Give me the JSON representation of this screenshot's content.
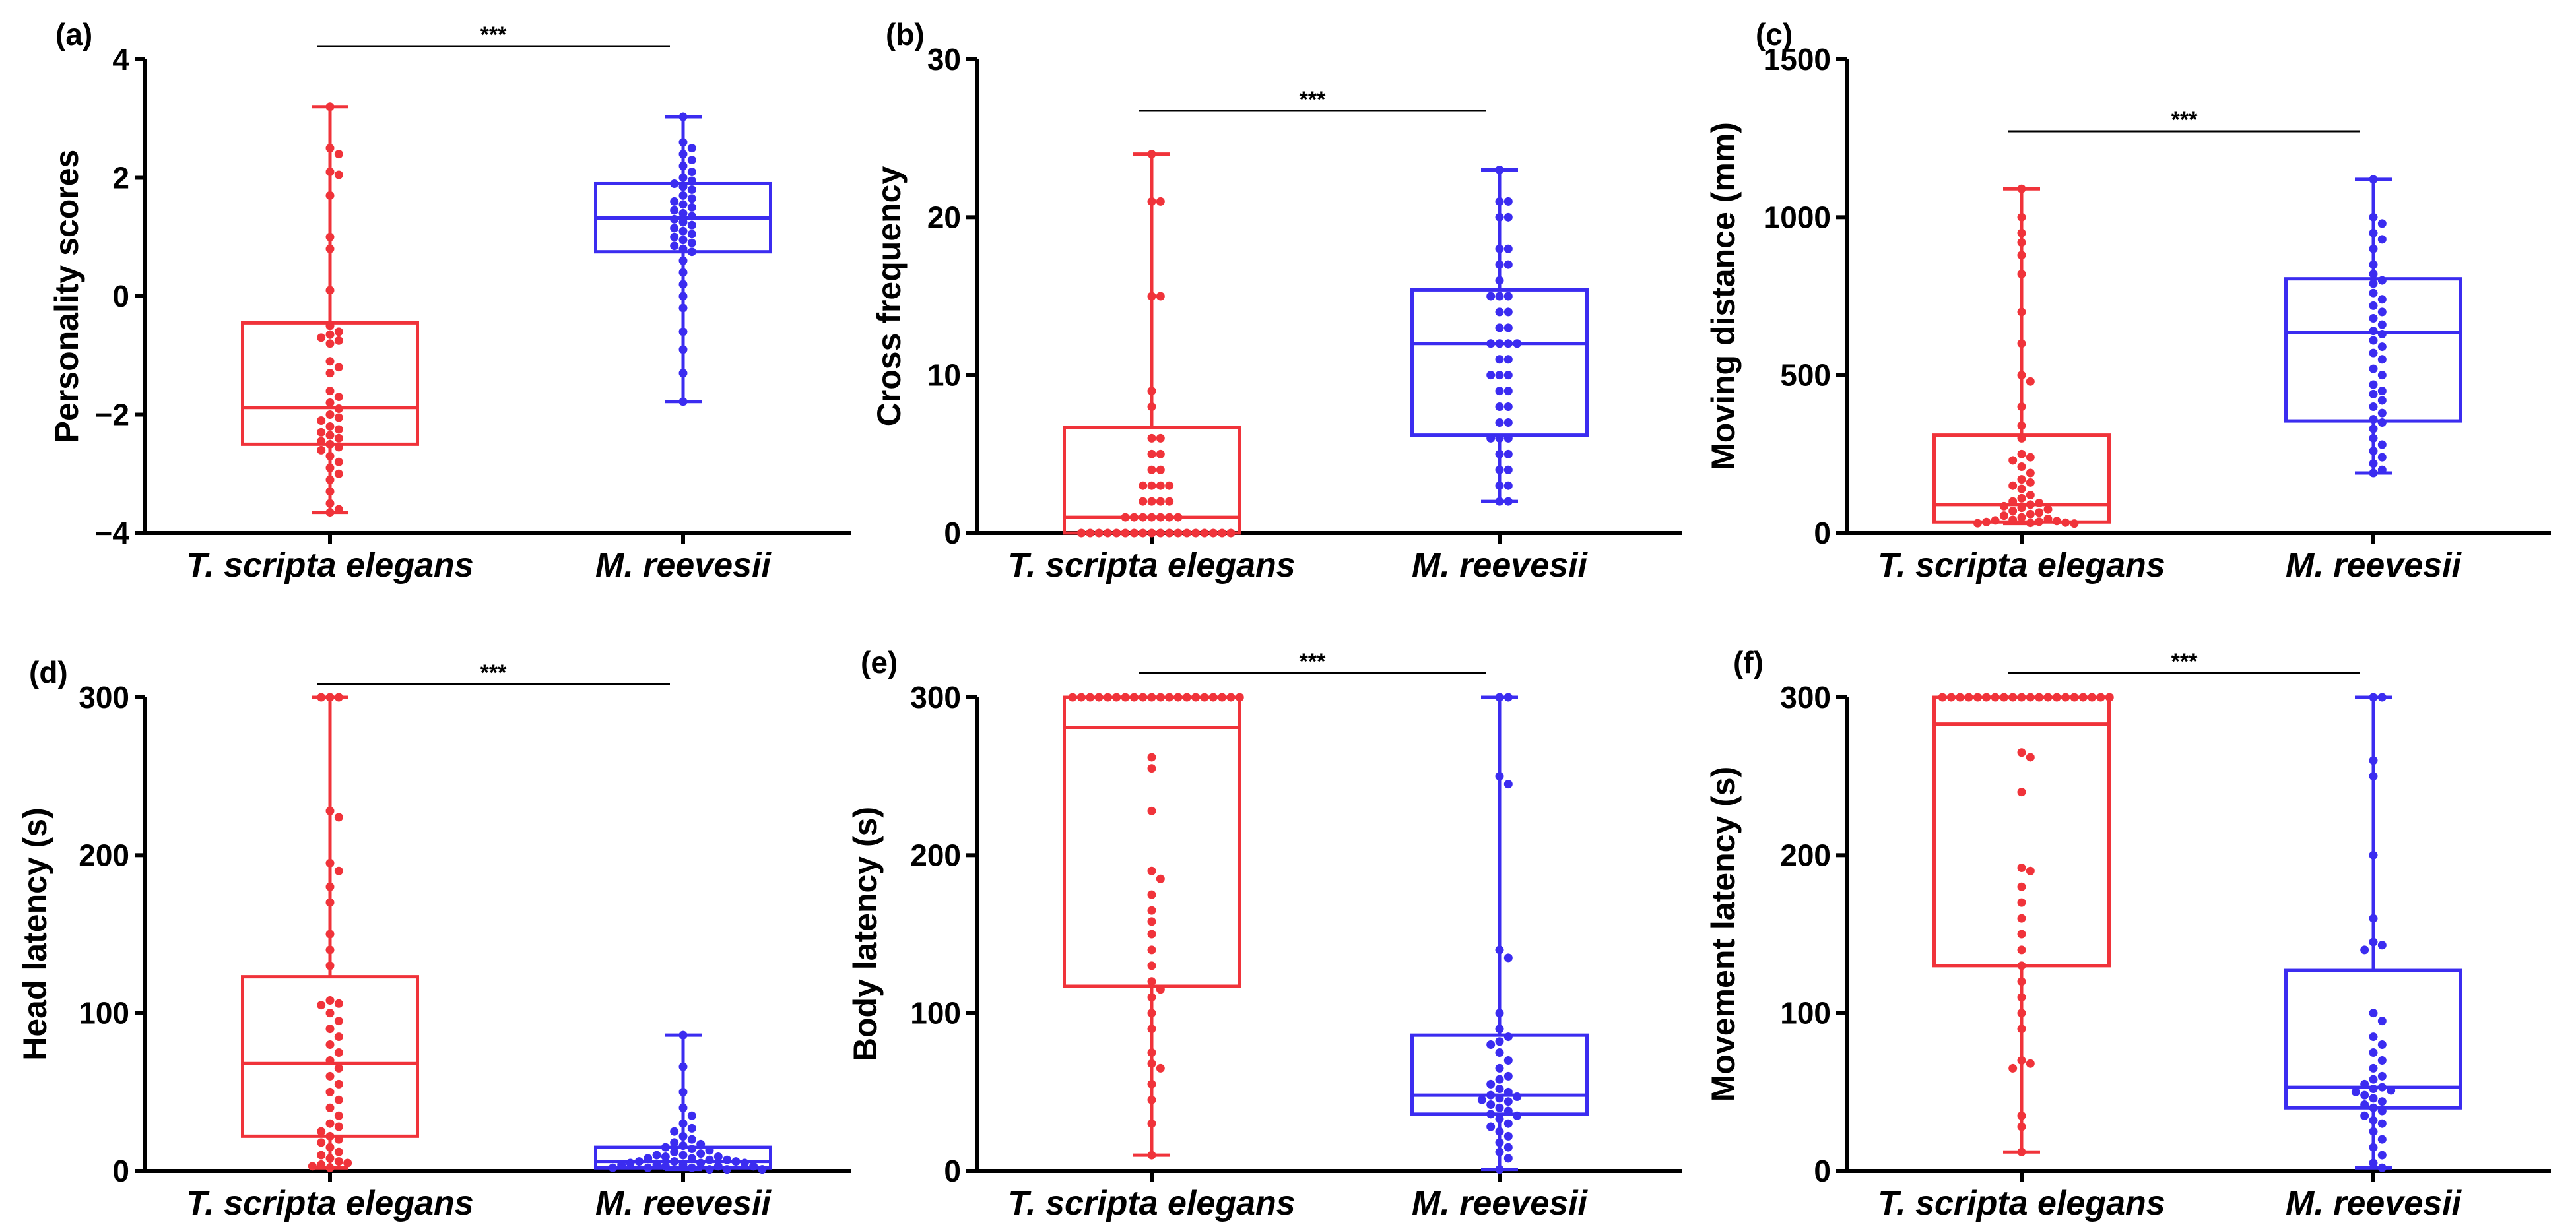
{
  "colors": {
    "red": "#f0333a",
    "blue": "#3b2cf0",
    "axis": "#000000"
  },
  "chart_data": [
    {
      "type": "box",
      "panel": "(a)",
      "ylabel": "Personality scores",
      "ylim": [
        -4,
        4
      ],
      "yticks": [
        -4,
        -2,
        0,
        2,
        4
      ],
      "ytick_labels": [
        "−4",
        "−2",
        "0",
        "2",
        "4"
      ],
      "categories": [
        "T. scripta elegans",
        "M. reevesii"
      ],
      "significance": "***",
      "series": [
        {
          "name": "T. scripta elegans",
          "color": "red",
          "min": -3.65,
          "q1": -2.5,
          "median": -1.88,
          "q3": -0.45,
          "max": 3.2,
          "points": [
            3.2,
            2.5,
            2.4,
            2.1,
            2.05,
            1.7,
            1.0,
            0.8,
            0.1,
            -0.5,
            -0.6,
            -0.65,
            -0.7,
            -0.75,
            -0.8,
            -1.1,
            -1.2,
            -1.3,
            -1.6,
            -1.7,
            -1.8,
            -1.9,
            -2.0,
            -2.05,
            -2.1,
            -2.2,
            -2.25,
            -2.3,
            -2.35,
            -2.4,
            -2.45,
            -2.5,
            -2.55,
            -2.6,
            -2.7,
            -2.8,
            -2.9,
            -3.0,
            -3.1,
            -3.3,
            -3.5,
            -3.6,
            -3.65
          ]
        },
        {
          "name": "M. reevesii",
          "color": "blue",
          "min": -1.78,
          "q1": 0.75,
          "median": 1.32,
          "q3": 1.9,
          "max": 3.03,
          "points": [
            3.03,
            2.6,
            2.5,
            2.4,
            2.3,
            2.2,
            2.1,
            2.0,
            1.95,
            1.9,
            1.85,
            1.8,
            1.7,
            1.65,
            1.6,
            1.55,
            1.5,
            1.45,
            1.4,
            1.35,
            1.3,
            1.25,
            1.2,
            1.15,
            1.1,
            1.05,
            1.0,
            0.95,
            0.9,
            0.85,
            0.8,
            0.75,
            0.6,
            0.4,
            0.2,
            0.0,
            -0.2,
            -0.6,
            -0.9,
            -1.3,
            -1.78
          ]
        }
      ]
    },
    {
      "type": "box",
      "panel": "(b)",
      "ylabel": "Cross frequency",
      "ylim": [
        0,
        30
      ],
      "yticks": [
        0,
        10,
        20,
        30
      ],
      "ytick_labels": [
        "0",
        "10",
        "20",
        "30"
      ],
      "categories": [
        "T. scripta elegans",
        "M. reevesii"
      ],
      "significance": "***",
      "series": [
        {
          "name": "T. scripta elegans",
          "color": "red",
          "min": 0,
          "q1": 0,
          "median": 1,
          "q3": 6.7,
          "max": 24,
          "points": [
            24,
            21,
            21,
            15,
            15,
            9,
            8,
            6,
            6,
            5,
            5,
            4,
            4,
            3,
            3,
            3,
            3,
            2,
            2,
            2,
            2,
            1,
            1,
            1,
            1,
            1,
            1,
            1,
            0,
            0,
            0,
            0,
            0,
            0,
            0,
            0,
            0,
            0,
            0,
            0,
            0,
            0,
            0,
            0,
            0,
            0
          ]
        },
        {
          "name": "M. reevesii",
          "color": "blue",
          "min": 2,
          "q1": 6.2,
          "median": 12,
          "q3": 15.4,
          "max": 23,
          "points": [
            23,
            21,
            21,
            20,
            20,
            18,
            18,
            17,
            17,
            16,
            15,
            15,
            15,
            14,
            14,
            13,
            13,
            12,
            12,
            12,
            12,
            11,
            11,
            10,
            10,
            10,
            9,
            9,
            8,
            8,
            7,
            7,
            6,
            6,
            6,
            5,
            5,
            4,
            4,
            3,
            3,
            2,
            2
          ]
        }
      ]
    },
    {
      "type": "box",
      "panel": "(c)",
      "ylabel": "Moving distance (mm)",
      "ylim": [
        0,
        1500
      ],
      "yticks": [
        0,
        500,
        1000,
        1500
      ],
      "ytick_labels": [
        "0",
        "500",
        "1000",
        "1500"
      ],
      "categories": [
        "T. scripta elegans",
        "M. reevesii"
      ],
      "significance": "***",
      "series": [
        {
          "name": "T. scripta elegans",
          "color": "red",
          "min": 30,
          "q1": 35,
          "median": 90,
          "q3": 310,
          "max": 1090,
          "points": [
            1090,
            1000,
            950,
            920,
            880,
            820,
            700,
            600,
            500,
            480,
            400,
            340,
            300,
            250,
            240,
            230,
            210,
            190,
            170,
            160,
            150,
            140,
            120,
            110,
            100,
            95,
            90,
            85,
            80,
            75,
            70,
            65,
            60,
            55,
            50,
            45,
            42,
            40,
            38,
            36,
            35,
            33,
            32,
            31,
            30
          ]
        },
        {
          "name": "M. reevesii",
          "color": "blue",
          "min": 190,
          "q1": 355,
          "median": 635,
          "q3": 805,
          "max": 1120,
          "points": [
            1120,
            1000,
            980,
            950,
            930,
            900,
            850,
            820,
            800,
            790,
            760,
            740,
            720,
            700,
            680,
            660,
            640,
            630,
            610,
            590,
            570,
            550,
            520,
            500,
            470,
            450,
            440,
            420,
            400,
            380,
            360,
            350,
            330,
            300,
            280,
            260,
            240,
            220,
            200,
            190
          ]
        }
      ]
    },
    {
      "type": "box",
      "panel": "(d)",
      "ylabel": "Head latency (s)",
      "ylim": [
        0,
        300
      ],
      "yticks": [
        0,
        100,
        200,
        300
      ],
      "ytick_labels": [
        "0",
        "100",
        "200",
        "300"
      ],
      "categories": [
        "T. scripta elegans",
        "M. reevesii"
      ],
      "significance": "***",
      "series": [
        {
          "name": "T. scripta elegans",
          "color": "red",
          "min": 2,
          "q1": 22,
          "median": 68,
          "q3": 123,
          "max": 300,
          "points": [
            300,
            300,
            300,
            228,
            224,
            195,
            190,
            180,
            170,
            150,
            140,
            130,
            108,
            106,
            105,
            100,
            95,
            90,
            85,
            80,
            75,
            70,
            65,
            60,
            55,
            50,
            45,
            40,
            35,
            30,
            28,
            25,
            22,
            20,
            18,
            15,
            12,
            10,
            8,
            6,
            5,
            4,
            3,
            2
          ]
        },
        {
          "name": "M. reevesii",
          "color": "blue",
          "min": 1,
          "q1": 2,
          "median": 6,
          "q3": 15,
          "max": 86,
          "points": [
            86,
            66,
            50,
            40,
            35,
            30,
            27,
            25,
            22,
            20,
            18,
            17,
            16,
            15,
            14,
            13,
            12,
            11,
            10,
            10,
            9,
            9,
            8,
            8,
            7,
            7,
            6,
            6,
            6,
            5,
            5,
            5,
            4,
            4,
            4,
            3,
            3,
            3,
            2,
            2,
            2,
            1,
            1,
            1
          ]
        }
      ]
    },
    {
      "type": "box",
      "panel": "(e)",
      "ylabel": "Body latency (s)",
      "ylim": [
        0,
        300
      ],
      "yticks": [
        0,
        100,
        200,
        300
      ],
      "ytick_labels": [
        "0",
        "100",
        "200",
        "300"
      ],
      "categories": [
        "T. scripta elegans",
        "M. reevesii"
      ],
      "significance": "***",
      "series": [
        {
          "name": "T. scripta elegans",
          "color": "red",
          "min": 10,
          "q1": 117,
          "median": 281,
          "q3": 300,
          "max": 300,
          "points": [
            300,
            300,
            300,
            300,
            300,
            300,
            300,
            300,
            300,
            300,
            300,
            300,
            300,
            300,
            300,
            300,
            300,
            300,
            300,
            300,
            262,
            255,
            228,
            190,
            185,
            175,
            165,
            158,
            150,
            140,
            130,
            120,
            115,
            110,
            100,
            90,
            75,
            68,
            65,
            55,
            45,
            30,
            10
          ]
        },
        {
          "name": "M. reevesii",
          "color": "blue",
          "min": 1,
          "q1": 36,
          "median": 48,
          "q3": 86,
          "max": 300,
          "points": [
            300,
            300,
            250,
            245,
            140,
            135,
            100,
            90,
            85,
            82,
            80,
            75,
            70,
            65,
            60,
            58,
            55,
            52,
            50,
            48,
            47,
            46,
            45,
            44,
            42,
            40,
            38,
            36,
            35,
            33,
            30,
            28,
            25,
            22,
            18,
            15,
            12,
            8,
            1
          ]
        }
      ]
    },
    {
      "type": "box",
      "panel": "(f)",
      "ylabel": "Movement latency (s)",
      "ylim": [
        0,
        300
      ],
      "yticks": [
        0,
        100,
        200,
        300
      ],
      "ytick_labels": [
        "0",
        "100",
        "200",
        "300"
      ],
      "categories": [
        "T. scripta elegans",
        "M. reevesii"
      ],
      "significance": "***",
      "series": [
        {
          "name": "T. scripta elegans",
          "color": "red",
          "min": 12,
          "q1": 130,
          "median": 283,
          "q3": 300,
          "max": 300,
          "points": [
            300,
            300,
            300,
            300,
            300,
            300,
            300,
            300,
            300,
            300,
            300,
            300,
            300,
            300,
            300,
            300,
            300,
            300,
            300,
            300,
            265,
            262,
            240,
            192,
            190,
            180,
            170,
            160,
            150,
            140,
            130,
            120,
            110,
            100,
            90,
            70,
            68,
            65,
            35,
            28,
            12
          ]
        },
        {
          "name": "M. reevesii",
          "color": "blue",
          "min": 2,
          "q1": 40,
          "median": 53,
          "q3": 127,
          "max": 300,
          "points": [
            300,
            300,
            260,
            250,
            200,
            160,
            145,
            143,
            140,
            100,
            95,
            85,
            80,
            75,
            70,
            65,
            60,
            58,
            55,
            53,
            52,
            51,
            50,
            48,
            46,
            44,
            42,
            40,
            38,
            35,
            32,
            30,
            25,
            20,
            15,
            10,
            5,
            2
          ]
        }
      ]
    }
  ]
}
